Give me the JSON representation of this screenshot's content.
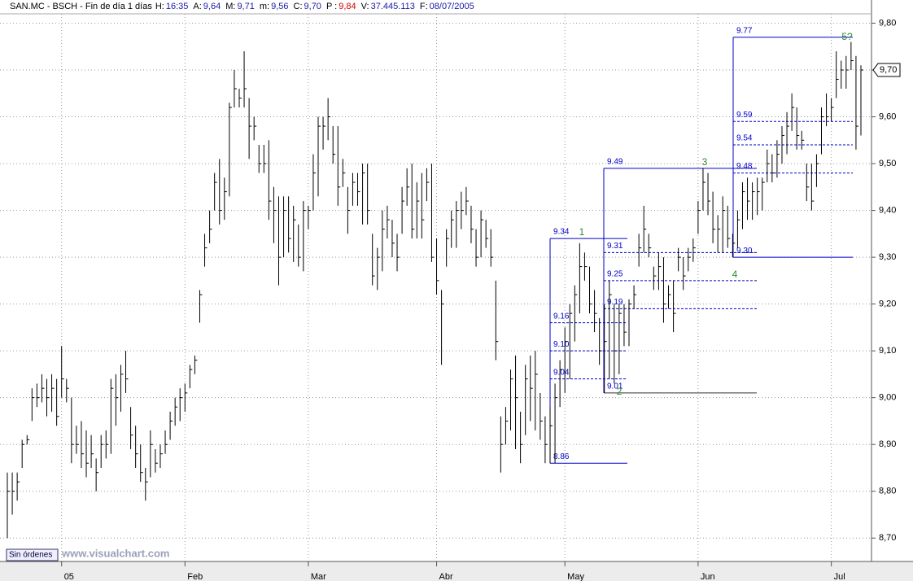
{
  "chart_data": {
    "type": "ohlc",
    "symbol": "SAN.MC - BSCH - Fin de día 1 días",
    "header": [
      {
        "label": "H:",
        "value": "16:35"
      },
      {
        "label": "A:",
        "value": "9,64"
      },
      {
        "label": "M:",
        "value": "9,71"
      },
      {
        "label": "m:",
        "value": "9,56"
      },
      {
        "label": "C:",
        "value": "9,70"
      },
      {
        "label": "P :",
        "value": "9,84"
      },
      {
        "label": "V:",
        "value": "37.445.113"
      },
      {
        "label": "F:",
        "value": "08/07/2005"
      }
    ],
    "color": "#000000",
    "grid": true,
    "ylim": [
      8.65,
      9.82
    ],
    "yticks": [
      {
        "value": 8.7,
        "label": "8,70"
      },
      {
        "value": 8.8,
        "label": "8,80"
      },
      {
        "value": 8.9,
        "label": "8,90"
      },
      {
        "value": 9.0,
        "label": "9,00"
      },
      {
        "value": 9.1,
        "label": "9,10"
      },
      {
        "value": 9.2,
        "label": "9,20"
      },
      {
        "value": 9.3,
        "label": "9,30"
      },
      {
        "value": 9.4,
        "label": "9,40"
      },
      {
        "value": 9.5,
        "label": "9,50"
      },
      {
        "value": 9.6,
        "label": "9,60"
      },
      {
        "value": 9.7,
        "label": "9,70"
      },
      {
        "value": 9.8,
        "label": "9,80"
      }
    ],
    "xticks": [
      {
        "value": 11,
        "label": "05"
      },
      {
        "value": 36,
        "label": "Feb"
      },
      {
        "value": 61,
        "label": "Mar"
      },
      {
        "value": 87,
        "label": "Abr"
      },
      {
        "value": 113,
        "label": "May"
      },
      {
        "value": 140,
        "label": "Jun"
      },
      {
        "value": 167,
        "label": "Jul"
      }
    ],
    "last_price": {
      "value": 9.7,
      "label": "9,70"
    },
    "high": [
      8.84,
      8.84,
      8.84,
      8.91,
      8.92,
      9.02,
      9.03,
      9.05,
      9.04,
      9.05,
      9.04,
      9.11,
      9.04,
      9.0,
      8.94,
      8.95,
      8.93,
      8.92,
      8.87,
      8.92,
      8.93,
      9.04,
      9.05,
      9.07,
      9.1,
      8.98,
      8.94,
      8.9,
      8.85,
      8.93,
      8.89,
      8.9,
      8.93,
      8.97,
      9.0,
      9.02,
      9.03,
      9.07,
      9.09,
      9.23,
      9.35,
      9.4,
      9.48,
      9.51,
      9.47,
      9.63,
      9.7,
      9.66,
      9.74,
      9.64,
      9.6,
      9.54,
      9.54,
      9.55,
      9.45,
      9.43,
      9.43,
      9.43,
      9.41,
      9.37,
      9.42,
      9.41,
      9.52,
      9.6,
      9.6,
      9.64,
      9.58,
      9.58,
      9.51,
      9.45,
      9.48,
      9.48,
      9.5,
      9.5,
      9.35,
      9.32,
      9.4,
      9.41,
      9.38,
      9.35,
      9.45,
      9.49,
      9.5,
      9.46,
      9.48,
      9.49,
      9.5,
      9.34,
      9.23,
      9.36,
      9.4,
      9.42,
      9.44,
      9.45,
      9.41,
      9.36,
      9.4,
      9.38,
      9.36,
      9.25,
      8.96,
      8.98,
      9.06,
      9.09,
      8.97,
      9.07,
      9.09,
      9.1,
      9.01,
      8.96,
      8.98,
      9.03,
      9.08,
      9.15,
      9.2,
      9.24,
      9.33,
      9.31,
      9.28,
      9.23,
      9.17,
      9.2,
      9.25,
      9.2,
      9.2,
      9.2,
      9.21,
      9.24,
      9.35,
      9.41,
      9.35,
      9.28,
      9.31,
      9.3,
      9.24,
      9.25,
      9.32,
      9.3,
      9.32,
      9.34,
      9.42,
      9.49,
      9.48,
      9.44,
      9.39,
      9.43,
      9.41,
      9.35,
      9.4,
      9.46,
      9.47,
      9.46,
      9.47,
      9.47,
      9.53,
      9.52,
      9.55,
      9.58,
      9.61,
      9.65,
      9.62,
      9.57,
      9.5,
      9.5,
      9.52,
      9.62,
      9.65,
      9.64,
      9.74,
      9.72,
      9.73,
      9.76,
      9.73,
      9.71
    ],
    "low": [
      8.7,
      8.75,
      8.78,
      8.85,
      8.9,
      8.95,
      8.98,
      8.99,
      8.96,
      8.97,
      8.94,
      9.0,
      8.99,
      8.86,
      8.88,
      8.85,
      8.83,
      8.85,
      8.8,
      8.85,
      8.87,
      8.88,
      8.94,
      8.97,
      9.01,
      8.89,
      8.85,
      8.82,
      8.78,
      8.83,
      8.84,
      8.85,
      8.88,
      8.91,
      8.94,
      8.95,
      8.97,
      9.02,
      9.05,
      9.16,
      9.28,
      9.33,
      9.4,
      9.37,
      9.38,
      9.43,
      9.62,
      9.62,
      9.62,
      9.51,
      9.55,
      9.48,
      9.48,
      9.38,
      9.33,
      9.24,
      9.3,
      9.31,
      9.29,
      9.28,
      9.27,
      9.36,
      9.4,
      9.43,
      9.53,
      9.55,
      9.5,
      9.41,
      9.45,
      9.35,
      9.41,
      9.41,
      9.37,
      9.37,
      9.24,
      9.23,
      9.27,
      9.34,
      9.3,
      9.27,
      9.35,
      9.41,
      9.34,
      9.34,
      9.34,
      9.42,
      9.29,
      9.22,
      9.07,
      9.28,
      9.32,
      9.32,
      9.36,
      9.39,
      9.33,
      9.28,
      9.3,
      9.32,
      9.28,
      9.08,
      8.84,
      8.9,
      8.93,
      8.89,
      8.86,
      8.92,
      8.95,
      8.93,
      8.91,
      8.86,
      8.86,
      8.86,
      8.98,
      9.01,
      9.04,
      9.12,
      9.18,
      9.25,
      9.18,
      9.14,
      9.07,
      9.01,
      9.04,
      9.03,
      9.05,
      9.11,
      9.11,
      9.19,
      9.28,
      9.31,
      9.3,
      9.23,
      9.23,
      9.16,
      9.19,
      9.14,
      9.27,
      9.23,
      9.27,
      9.29,
      9.35,
      9.4,
      9.39,
      9.33,
      9.31,
      9.31,
      9.32,
      9.3,
      9.32,
      9.36,
      9.38,
      9.38,
      9.39,
      9.4,
      9.46,
      9.46,
      9.47,
      9.5,
      9.52,
      9.57,
      9.53,
      9.53,
      9.42,
      9.4,
      9.45,
      9.52,
      9.58,
      9.59,
      9.64,
      9.66,
      9.66,
      9.7,
      9.53,
      9.56
    ],
    "close": [
      8.8,
      8.8,
      8.82,
      8.9,
      8.91,
      9.0,
      9.0,
      9.02,
      9.0,
      9.02,
      8.96,
      9.04,
      9.02,
      8.9,
      8.9,
      8.88,
      8.86,
      8.88,
      8.84,
      8.9,
      8.9,
      9.02,
      9.0,
      9.05,
      9.04,
      8.92,
      8.88,
      8.84,
      8.82,
      8.9,
      8.86,
      8.88,
      8.9,
      8.95,
      8.98,
      9.0,
      9.01,
      9.06,
      9.08,
      9.22,
      9.32,
      9.36,
      9.46,
      9.4,
      9.44,
      9.62,
      9.66,
      9.64,
      9.66,
      9.58,
      9.58,
      9.5,
      9.5,
      9.42,
      9.4,
      9.3,
      9.4,
      9.34,
      9.38,
      9.3,
      9.4,
      9.4,
      9.48,
      9.58,
      9.58,
      9.6,
      9.52,
      9.45,
      9.48,
      9.4,
      9.46,
      9.44,
      9.48,
      9.4,
      9.26,
      9.3,
      9.36,
      9.38,
      9.33,
      9.3,
      9.42,
      9.45,
      9.36,
      9.42,
      9.38,
      9.46,
      9.3,
      9.25,
      9.2,
      9.34,
      9.38,
      9.4,
      9.4,
      9.42,
      9.36,
      9.3,
      9.38,
      9.34,
      9.3,
      9.12,
      8.9,
      8.95,
      9.04,
      9.0,
      8.9,
      9.04,
      9.02,
      9.05,
      8.95,
      8.9,
      8.94,
      9.0,
      9.06,
      9.12,
      9.18,
      9.22,
      9.28,
      9.28,
      9.2,
      9.18,
      9.1,
      9.12,
      9.22,
      9.1,
      9.18,
      9.14,
      9.2,
      9.22,
      9.32,
      9.36,
      9.32,
      9.26,
      9.28,
      9.2,
      9.22,
      9.18,
      9.3,
      9.26,
      9.3,
      9.32,
      9.4,
      9.46,
      9.42,
      9.36,
      9.36,
      9.4,
      9.34,
      9.33,
      9.38,
      9.44,
      9.42,
      9.44,
      9.44,
      9.46,
      9.5,
      9.48,
      9.52,
      9.56,
      9.58,
      9.62,
      9.56,
      9.55,
      9.45,
      9.42,
      9.5,
      9.6,
      9.6,
      9.62,
      9.68,
      9.7,
      9.7,
      9.72,
      9.58,
      9.7
    ],
    "fibo_color": "#0000c8",
    "fibo": [
      {
        "high": 9.34,
        "low": 8.86,
        "levels": [
          9.16,
          {
            "value": 9.1,
            "label": "9.10"
          },
          9.04
        ]
      },
      {
        "high": 9.49,
        "low": 9.01,
        "levels": [
          9.31,
          9.25,
          9.19
        ]
      },
      {
        "high": 9.77,
        "low": {
          "value": 9.3,
          "label": "9.30."
        },
        "levels": [
          9.59,
          9.54,
          9.48
        ]
      }
    ],
    "wave_color": "#2e8b2e",
    "waves": [
      "1",
      "2",
      "3",
      "4",
      "5?"
    ],
    "button": "Sin órdenes",
    "watermark": "www.visualchart.com"
  }
}
